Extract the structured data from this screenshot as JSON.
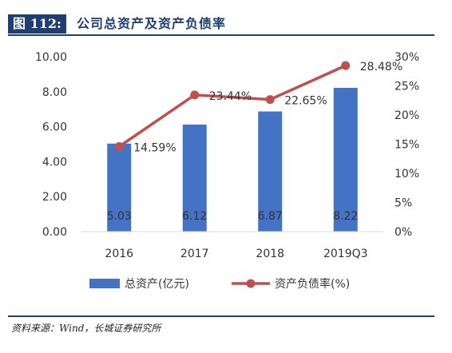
{
  "figure": {
    "number_label": "图 112:",
    "title": "公司总资产及资产负债率",
    "source": "资料来源：Wind，长城证券研究所"
  },
  "chart_data": {
    "type": "bar+line",
    "categories": [
      "2016",
      "2017",
      "2018",
      "2019Q3"
    ],
    "series": [
      {
        "name": "总资产(亿元)",
        "type": "bar",
        "axis": "left",
        "values": [
          5.03,
          6.12,
          6.87,
          8.22
        ],
        "labels": [
          "5.03",
          "6.12",
          "6.87",
          "8.22"
        ],
        "color": "#4472c4"
      },
      {
        "name": "资产负债率(%)",
        "type": "line",
        "axis": "right",
        "values": [
          14.59,
          23.44,
          22.65,
          28.48
        ],
        "labels": [
          "14.59%",
          "23.44%",
          "22.65%",
          "28.48%"
        ],
        "color": "#c0504d"
      }
    ],
    "y_left": {
      "min": 0,
      "max": 10,
      "ticks": [
        "0.00",
        "2.00",
        "4.00",
        "6.00",
        "8.00",
        "10.00"
      ]
    },
    "y_right": {
      "min": 0,
      "max": 30,
      "ticks": [
        "0%",
        "5%",
        "10%",
        "15%",
        "20%",
        "25%",
        "30%"
      ]
    },
    "legend_position": "bottom",
    "grid": false
  }
}
